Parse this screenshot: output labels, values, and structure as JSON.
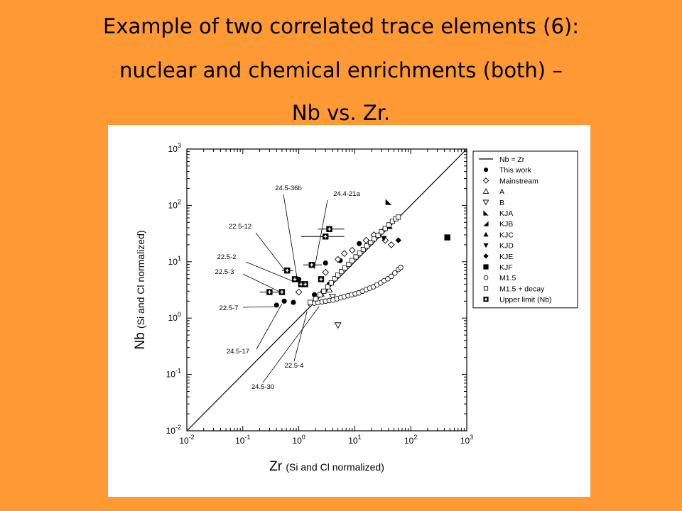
{
  "slide": {
    "title_line1": "Example of two correlated trace elements (6):",
    "title_line2": "nuclear and chemical enrichments (both) –",
    "title_line3": "Nb vs. Zr.",
    "background_color": "#FF9933"
  },
  "chart_data": {
    "type": "scatter",
    "xscale": "log",
    "yscale": "log",
    "xlim": [
      0.01,
      1000
    ],
    "ylim": [
      0.01,
      1000
    ],
    "xlabel": "Zr",
    "xlabel_sub": "(Si and Cl normalized)",
    "ylabel": "Nb",
    "ylabel_sub": "(Si and Cl normalized)",
    "x_ticks": [
      {
        "value": 0.01,
        "base": "10",
        "exp": "-2"
      },
      {
        "value": 0.1,
        "base": "10",
        "exp": "-1"
      },
      {
        "value": 1,
        "base": "10",
        "exp": "0"
      },
      {
        "value": 10,
        "base": "10",
        "exp": "1"
      },
      {
        "value": 100,
        "base": "10",
        "exp": "2"
      },
      {
        "value": 1000,
        "base": "10",
        "exp": "3"
      }
    ],
    "y_ticks": [
      {
        "value": 0.01,
        "base": "10",
        "exp": "-2"
      },
      {
        "value": 0.1,
        "base": "10",
        "exp": "-1"
      },
      {
        "value": 1,
        "base": "10",
        "exp": "0"
      },
      {
        "value": 10,
        "base": "10",
        "exp": "1"
      },
      {
        "value": 100,
        "base": "10",
        "exp": "2"
      },
      {
        "value": 1000,
        "base": "10",
        "exp": "3"
      }
    ],
    "reference_line": {
      "label": "Nb = Zr",
      "x": [
        0.01,
        1000
      ],
      "y": [
        0.01,
        1000
      ]
    },
    "legend_position": "right",
    "series": [
      {
        "name": "This work",
        "marker": "circle-filled",
        "points": [
          [
            0.4,
            1.7
          ],
          [
            0.55,
            2.0
          ],
          [
            0.8,
            1.9
          ],
          [
            1.0,
            4.9
          ],
          [
            1.9,
            2.6
          ],
          [
            3.0,
            9.5
          ],
          [
            5.5,
            10.5
          ],
          [
            12,
            21
          ],
          [
            3.5,
            4.0
          ],
          [
            2.0,
            2.2
          ]
        ]
      },
      {
        "name": "Mainstream",
        "marker": "diamond-open",
        "points": [
          [
            1.0,
            2.9
          ],
          [
            3.0,
            6.5
          ],
          [
            5.0,
            11
          ],
          [
            6.5,
            14
          ],
          [
            9.0,
            16
          ],
          [
            16,
            24
          ],
          [
            22,
            30
          ],
          [
            35,
            24
          ],
          [
            45,
            20
          ]
        ]
      },
      {
        "name": "A",
        "marker": "triangle-up-open",
        "points": [
          [
            2.5,
            2.7
          ],
          [
            3.5,
            3.2
          ]
        ]
      },
      {
        "name": "B",
        "marker": "triangle-down-open",
        "points": [
          [
            4.0,
            2.4
          ],
          [
            5.0,
            0.75
          ]
        ]
      },
      {
        "name": "KJA",
        "marker": "triangle-flag",
        "points": [
          [
            40,
            115
          ]
        ]
      },
      {
        "name": "KJB",
        "marker": "triangle-left-filled",
        "points": [
          [
            28,
            35
          ]
        ]
      },
      {
        "name": "KJC",
        "marker": "triangle-up-filled",
        "points": [
          [
            42,
            42
          ]
        ]
      },
      {
        "name": "KJD",
        "marker": "triangle-down-filled",
        "points": [
          [
            33,
            26
          ]
        ]
      },
      {
        "name": "KJE",
        "marker": "diamond-filled",
        "points": [
          [
            60,
            24
          ]
        ]
      },
      {
        "name": "KJF",
        "marker": "square-filled",
        "points": [
          [
            450,
            27
          ]
        ]
      },
      {
        "name": "M1.5",
        "marker": "circle-open",
        "points": [
          [
            1.6,
            1.8
          ],
          [
            1.9,
            1.85
          ],
          [
            2.2,
            1.9
          ],
          [
            2.6,
            1.95
          ],
          [
            3.0,
            2.0
          ],
          [
            3.5,
            2.05
          ],
          [
            4.1,
            2.1
          ],
          [
            4.8,
            2.2
          ],
          [
            5.6,
            2.3
          ],
          [
            6.5,
            2.4
          ],
          [
            7.6,
            2.5
          ],
          [
            8.8,
            2.6
          ],
          [
            10.2,
            2.7
          ],
          [
            11.8,
            2.8
          ],
          [
            13.7,
            3.0
          ],
          [
            16,
            3.2
          ],
          [
            18.5,
            3.4
          ],
          [
            21.5,
            3.6
          ],
          [
            25,
            3.9
          ],
          [
            29,
            4.2
          ],
          [
            33.5,
            4.6
          ],
          [
            39,
            5.0
          ],
          [
            45,
            5.5
          ],
          [
            52,
            6.3
          ],
          [
            60,
            7.3
          ],
          [
            66,
            7.9
          ]
        ]
      },
      {
        "name": "M1.5 + decay",
        "marker": "square-open",
        "points": [
          [
            1.6,
            1.9
          ],
          [
            2.0,
            2.2
          ],
          [
            2.4,
            2.6
          ],
          [
            2.8,
            3.0
          ],
          [
            3.3,
            3.6
          ],
          [
            3.8,
            4.2
          ],
          [
            4.4,
            5.0
          ],
          [
            5.0,
            5.8
          ],
          [
            5.8,
            6.7
          ],
          [
            6.7,
            7.8
          ],
          [
            7.8,
            9.0
          ],
          [
            9.0,
            10.5
          ],
          [
            10.5,
            12.2
          ],
          [
            12.2,
            14.2
          ],
          [
            14.2,
            16.5
          ],
          [
            16.5,
            19
          ],
          [
            19.2,
            22
          ],
          [
            22.3,
            25.5
          ],
          [
            26,
            29.5
          ],
          [
            30,
            34
          ],
          [
            35,
            39
          ],
          [
            40.5,
            45
          ],
          [
            47,
            52
          ],
          [
            54,
            58
          ],
          [
            60,
            62
          ]
        ]
      },
      {
        "name": "Upper limit (Nb)",
        "marker": "square-cross",
        "points": [
          [
            0.3,
            2.9
          ],
          [
            0.5,
            2.9
          ],
          [
            0.62,
            7.0
          ],
          [
            0.85,
            4.9
          ],
          [
            1.1,
            4.0
          ],
          [
            1.3,
            4.0
          ],
          [
            1.7,
            8.8
          ],
          [
            2.5,
            4.9
          ],
          [
            3.0,
            28
          ],
          [
            3.5,
            38
          ]
        ]
      }
    ],
    "error_bars": [
      {
        "x": [
          0.2,
          0.55
        ],
        "y": 2.9
      },
      {
        "x": [
          0.5,
          0.8
        ],
        "y": 7.0
      },
      {
        "x": [
          1.2,
          2.6
        ],
        "y": 8.8
      },
      {
        "x": [
          1.1,
          6.5
        ],
        "y": 28
      },
      {
        "x": [
          2.2,
          6.5
        ],
        "y": 38
      }
    ],
    "annotations": [
      {
        "text": "24.5-36b",
        "point": [
          0.95,
          4.5
        ]
      },
      {
        "text": "24.4-21a",
        "point": [
          1.9,
          7.5
        ]
      },
      {
        "text": "22.5-12",
        "point": [
          0.62,
          6.2
        ]
      },
      {
        "text": "22.5-2",
        "point": [
          0.75,
          4.6
        ]
      },
      {
        "text": "22.5-3",
        "point": [
          0.5,
          2.8
        ]
      },
      {
        "text": "22.5-7",
        "point": [
          0.38,
          1.6
        ]
      },
      {
        "text": "24.5-17",
        "point": [
          0.5,
          1.8
        ]
      },
      {
        "text": "22.5-4",
        "point": [
          1.4,
          1.3
        ]
      },
      {
        "text": "24.5-30",
        "point": [
          2.3,
          1.6
        ]
      }
    ]
  }
}
